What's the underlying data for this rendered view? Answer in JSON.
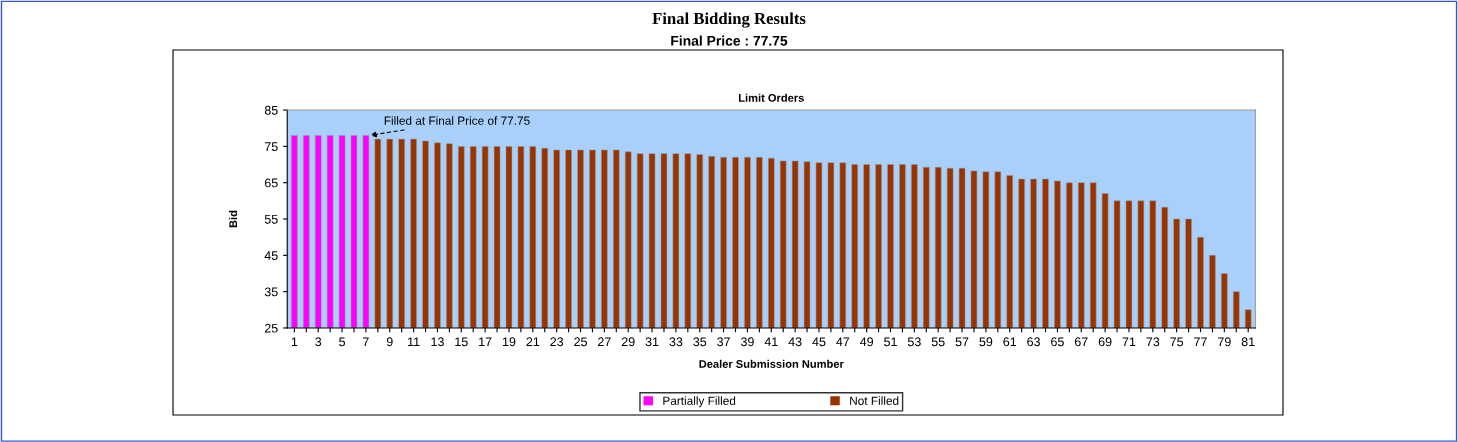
{
  "chart_data": {
    "type": "bar",
    "title": "Final Bidding Results",
    "subtitle": "Final Price : 77.75",
    "xlabel": "Dealer Submission Number",
    "ylabel": "Bid",
    "categories": [
      "1",
      null,
      "3",
      null,
      "5",
      null,
      "7",
      null,
      "9",
      null,
      "11",
      null,
      "13",
      null,
      "15",
      null,
      "17",
      null,
      "19",
      null,
      "21",
      null,
      "23",
      null,
      "25",
      null,
      "27",
      null,
      "29",
      null,
      "31",
      null,
      "33",
      null,
      "35",
      null,
      "37",
      null,
      "39",
      null,
      "41",
      null,
      "43",
      null,
      "45",
      null,
      "47",
      null,
      "49",
      null,
      "51",
      null,
      "53",
      null,
      "55",
      null,
      "57",
      null,
      "59",
      null,
      "61",
      null,
      "63",
      null,
      "65",
      null,
      "67",
      null,
      "69",
      null,
      "71",
      null,
      "73",
      null,
      "75",
      null,
      "77",
      null,
      "79",
      null,
      "81"
    ],
    "series": [
      {
        "name": "Partially Filled",
        "color": "#ff00ff",
        "values": [
          78,
          78,
          78,
          78,
          78,
          78,
          78,
          null,
          null,
          null,
          null,
          null,
          null,
          null,
          null,
          null,
          null,
          null,
          null,
          null,
          null,
          null,
          null,
          null,
          null,
          null,
          null,
          null,
          null,
          null,
          null,
          null,
          null,
          null,
          null,
          null,
          null,
          null,
          null,
          null,
          null,
          null,
          null,
          null,
          null,
          null,
          null,
          null,
          null,
          null,
          null,
          null,
          null,
          null,
          null,
          null,
          null,
          null,
          null,
          null,
          null,
          null,
          null,
          null,
          null,
          null,
          null,
          null,
          null,
          null,
          null,
          null,
          null,
          null,
          null,
          null,
          null,
          null,
          null,
          null,
          null
        ]
      },
      {
        "name": "Not Filled",
        "color": "#993300",
        "values": [
          null,
          null,
          null,
          null,
          null,
          null,
          null,
          77,
          77,
          77,
          77,
          76.5,
          76,
          75.75,
          75,
          75,
          75,
          75,
          75,
          75,
          75,
          74.5,
          74,
          74,
          74,
          74,
          74,
          74,
          73.5,
          73,
          73,
          73,
          73,
          73,
          72.75,
          72.25,
          72,
          72,
          72,
          72,
          71.75,
          71,
          71,
          70.75,
          70.5,
          70.5,
          70.5,
          70,
          70,
          70,
          70,
          70,
          70,
          69.25,
          69.25,
          69,
          69,
          68.25,
          68,
          68,
          67,
          66,
          66,
          66,
          65.5,
          65,
          65,
          65,
          62,
          60,
          60,
          60,
          60,
          58.25,
          55,
          55,
          50,
          45,
          40,
          35,
          30
        ]
      }
    ],
    "ylim": [
      25,
      85
    ],
    "yticks": [
      25,
      35,
      45,
      55,
      65,
      75,
      85
    ],
    "grid": false,
    "legend": "bottom",
    "annotations": [
      "Limit Orders",
      {
        "text": "Filled at Final Price of 77.75",
        "x": "7",
        "y": 78
      }
    ]
  }
}
